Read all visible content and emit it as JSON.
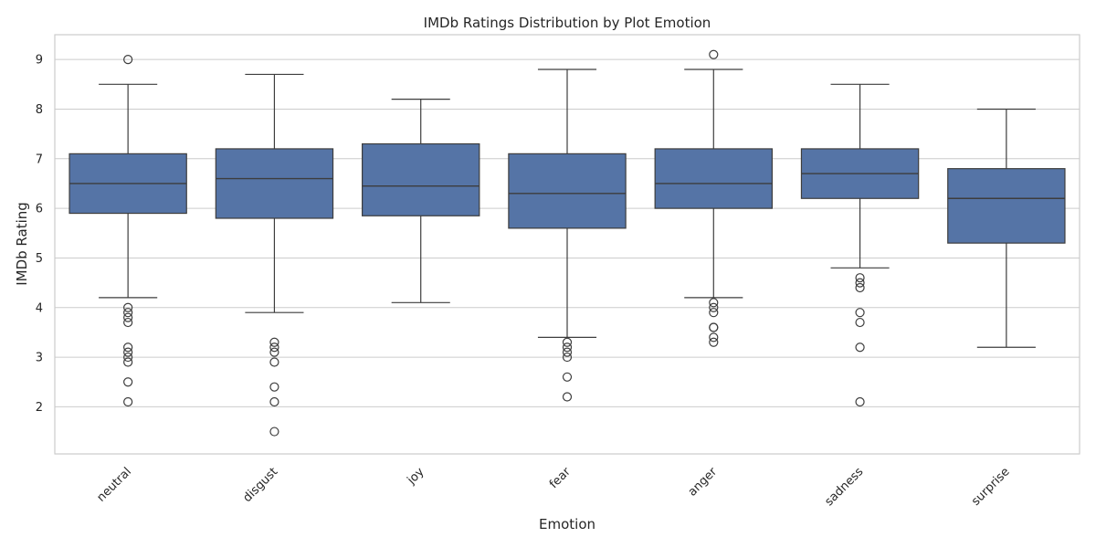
{
  "chart_data": {
    "type": "box",
    "title": "IMDb Ratings Distribution by Plot Emotion",
    "xlabel": "Emotion",
    "ylabel": "IMDb Rating",
    "ylim": [
      1.05,
      9.5
    ],
    "yticks": [
      2,
      3,
      4,
      5,
      6,
      7,
      8,
      9
    ],
    "grid": "horizontal",
    "box_color": "#5574a6",
    "categories": [
      "neutral",
      "disgust",
      "joy",
      "fear",
      "anger",
      "sadness",
      "surprise"
    ],
    "boxes": [
      {
        "category": "neutral",
        "whisker_low": 4.2,
        "q1": 5.9,
        "median": 6.5,
        "q3": 7.1,
        "whisker_high": 8.5,
        "outliers": [
          9.0,
          4.0,
          3.9,
          3.8,
          3.7,
          3.2,
          3.1,
          3.0,
          2.9,
          2.5,
          2.1
        ]
      },
      {
        "category": "disgust",
        "whisker_low": 3.9,
        "q1": 5.8,
        "median": 6.6,
        "q3": 7.2,
        "whisker_high": 8.7,
        "outliers": [
          3.3,
          3.2,
          3.1,
          2.9,
          2.4,
          2.1,
          1.5
        ]
      },
      {
        "category": "joy",
        "whisker_low": 4.1,
        "q1": 5.85,
        "median": 6.45,
        "q3": 7.3,
        "whisker_high": 8.2,
        "outliers": []
      },
      {
        "category": "fear",
        "whisker_low": 3.4,
        "q1": 5.6,
        "median": 6.3,
        "q3": 7.1,
        "whisker_high": 8.8,
        "outliers": [
          3.3,
          3.2,
          3.1,
          3.0,
          2.6,
          2.2
        ]
      },
      {
        "category": "anger",
        "whisker_low": 4.2,
        "q1": 6.0,
        "median": 6.5,
        "q3": 7.2,
        "whisker_high": 8.8,
        "outliers": [
          9.1,
          4.1,
          4.0,
          3.9,
          3.6,
          3.6,
          3.4,
          3.3
        ]
      },
      {
        "category": "sadness",
        "whisker_low": 4.8,
        "q1": 6.2,
        "median": 6.7,
        "q3": 7.2,
        "whisker_high": 8.5,
        "outliers": [
          4.6,
          4.5,
          4.4,
          3.9,
          3.7,
          3.2,
          2.1
        ]
      },
      {
        "category": "surprise",
        "whisker_low": 3.2,
        "q1": 5.3,
        "median": 6.2,
        "q3": 6.8,
        "whisker_high": 8.0,
        "outliers": []
      }
    ]
  }
}
